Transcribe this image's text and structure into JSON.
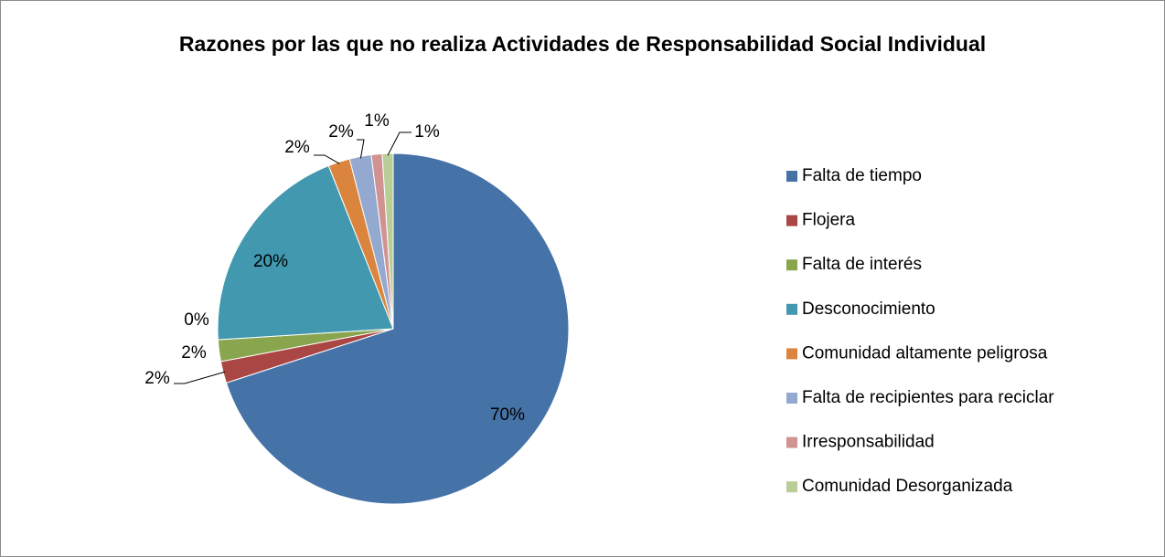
{
  "chart_data": {
    "type": "pie",
    "title": "Razones por las que no realiza Actividades de Responsabilidad Social Individual",
    "categories": [
      "Falta de tiempo",
      "Flojera",
      "Falta de interés",
      null,
      "Desconocimiento",
      "Comunidad altamente peligrosa",
      "Falta de recipientes para reciclar",
      "Irresponsabilidad",
      "Comunidad Desorganizada"
    ],
    "values": [
      70,
      2,
      2,
      0,
      20,
      2,
      2,
      1,
      1
    ],
    "value_labels": [
      "70%",
      "2%",
      "2%",
      "0%",
      "20%",
      "2%",
      "2%",
      "1%",
      "1%"
    ],
    "colors": [
      "#4572a7",
      "#aa4643",
      "#89a54e",
      "#71588f",
      "#4198af",
      "#db843d",
      "#93a9cf",
      "#d19392",
      "#b9cd96"
    ],
    "legend": "right"
  }
}
